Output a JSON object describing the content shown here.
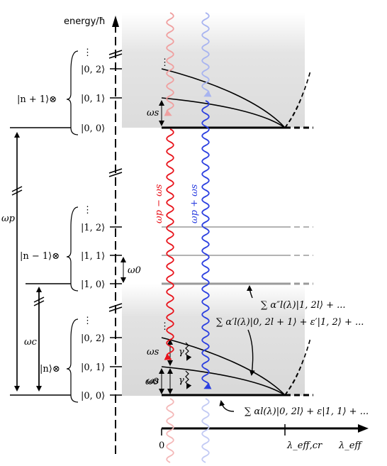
{
  "axes": {
    "y_label": "energy/ħ",
    "x_label": "λ_eff",
    "x_tick_zero": "0",
    "x_tick_cr": "λ_eff,cr"
  },
  "manifolds": {
    "upper": {
      "prefix": "|n + 1⟩⊗",
      "states": [
        "|0, 0⟩",
        "|0, 1⟩",
        "|0, 2⟩"
      ],
      "dots": "⋮"
    },
    "middle": {
      "prefix": "|n − 1⟩⊗",
      "states": [
        "|1, 0⟩",
        "|1, 1⟩",
        "|1, 2⟩"
      ],
      "dots": "⋮"
    },
    "lower": {
      "prefix": "|n⟩⊗",
      "states": [
        "|0, 0⟩",
        "|0, 1⟩",
        "|0, 2⟩"
      ],
      "dots": "⋮"
    }
  },
  "frequencies": {
    "omega_p": "ωp",
    "omega_c": "ωc",
    "omega_0": "ω0",
    "omega_s": "ωs",
    "gamma": "γ"
  },
  "transitions": {
    "red_label": "ωp − ωs",
    "blue_label": "ωp + ωs",
    "red_color": "#e8141c",
    "blue_color": "#2b3fe0"
  },
  "annotations": {
    "a_double_prime": "∑ α″l(λ)|1, 2l⟩ + ...",
    "a_prime": "∑ α′l(λ)|0, 2l + 1⟩ + ε′|1, 2⟩ + ...",
    "a_plain": "∑ αl(λ)|0, 2l⟩ + ε|1, 1⟩ + ..."
  }
}
